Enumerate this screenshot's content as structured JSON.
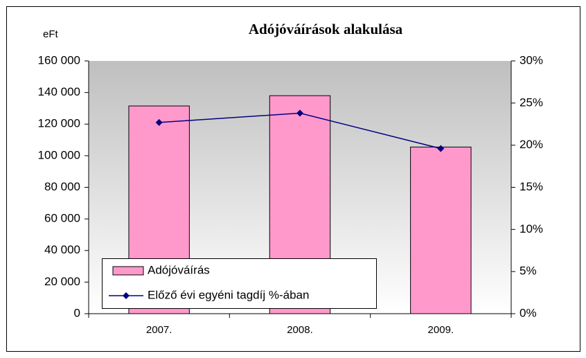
{
  "chart_data": {
    "type": "bar",
    "title": "Adójóváírások alakulása",
    "y_axis_label": "eFt",
    "categories": [
      "2007.",
      "2008.",
      "2009."
    ],
    "series": [
      {
        "name": "Adójóváírás",
        "type": "bar",
        "color": "#ff99cc",
        "values": [
          131500,
          138000,
          105500
        ]
      },
      {
        "name": "Előző évi egyéni tagdíj %-ában",
        "type": "line",
        "axis": "y2",
        "color": "#000080",
        "values": [
          22.7,
          23.8,
          19.6
        ]
      }
    ],
    "ylim": [
      0,
      160000
    ],
    "yticks": [
      0,
      {
        "value": 20000,
        "label": "20 000"
      },
      {
        "value": 40000,
        "label": "40 000"
      },
      {
        "value": 60000,
        "label": "60 000"
      },
      {
        "value": 80000,
        "label": "80 000"
      },
      {
        "value": 100000,
        "label": "100 000"
      },
      {
        "value": 120000,
        "label": "120 000"
      },
      {
        "value": 140000,
        "label": "140 000"
      },
      {
        "value": 160000,
        "label": "160 000"
      }
    ],
    "y2lim": [
      0,
      30
    ],
    "y2ticks": [
      {
        "value": 0,
        "label": "0%"
      },
      {
        "value": 5,
        "label": "5%"
      },
      {
        "value": 10,
        "label": "10%"
      },
      {
        "value": 15,
        "label": "15%"
      },
      {
        "value": 20,
        "label": "20%"
      },
      {
        "value": 25,
        "label": "25%"
      },
      {
        "value": 30,
        "label": "30%"
      }
    ],
    "grid": false,
    "legend": "bottom-left"
  }
}
